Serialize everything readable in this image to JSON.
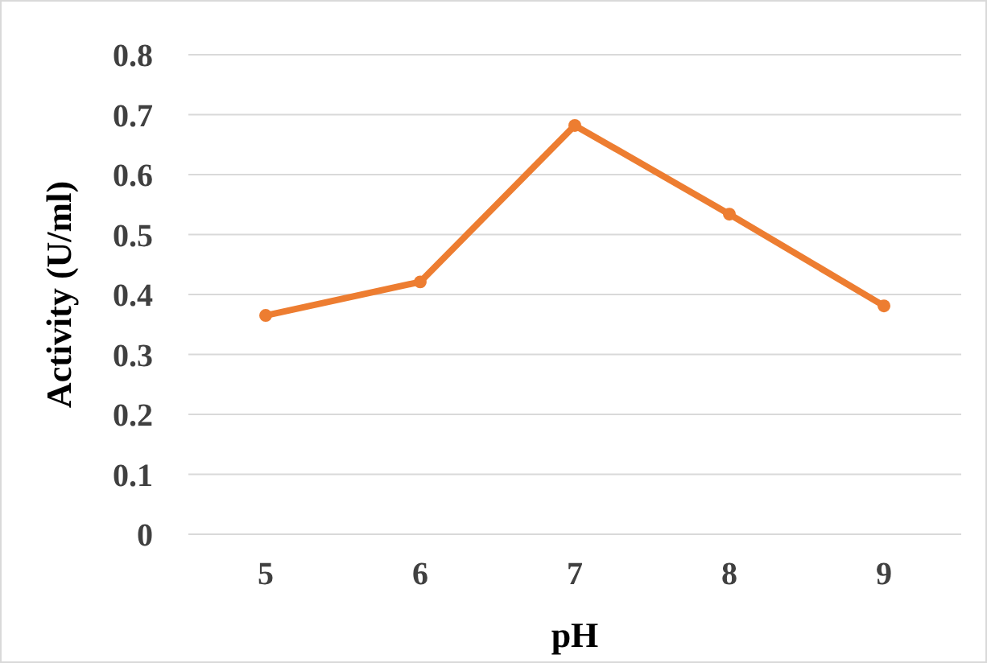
{
  "chart_data": {
    "type": "line",
    "xlabel": "pH",
    "ylabel": "Activity (U/ml)",
    "categories": [
      "5",
      "6",
      "7",
      "8",
      "9"
    ],
    "series": [
      {
        "color": "#ed7d31",
        "values": [
          0.365,
          0.421,
          0.682,
          0.534,
          0.381
        ]
      }
    ],
    "ylim": [
      0,
      0.8
    ],
    "yticks": [
      0,
      0.1,
      0.2,
      0.3,
      0.4,
      0.5,
      0.6,
      0.7,
      0.8
    ],
    "grid": "y",
    "marker": "circle",
    "line_style": "solid"
  }
}
